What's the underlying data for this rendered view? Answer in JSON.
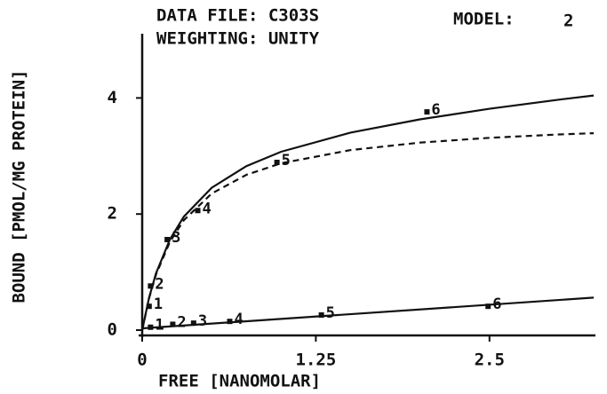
{
  "chart_data": {
    "type": "scatter",
    "title_lines": [
      "DATA FILE: C303S",
      "WEIGHTING: UNITY"
    ],
    "model_label": "MODEL:",
    "model": "2",
    "x_label": "FREE [NANOMOLAR]",
    "y_label": "BOUND [PMOL/MG PROTEIN]",
    "xlim": [
      0,
      3.25
    ],
    "ylim": [
      0,
      5
    ],
    "xticks": [
      0,
      1.25,
      2.5
    ],
    "yticks": [
      0,
      2,
      4
    ],
    "color": "#111111",
    "series": [
      {
        "style": "points",
        "labels": [
          "1",
          "2",
          "3",
          "4",
          "5",
          "6"
        ],
        "x": [
          0.05,
          0.06,
          0.18,
          0.4,
          0.97,
          2.05
        ],
        "values": [
          0.41,
          0.76,
          1.56,
          2.06,
          2.89,
          3.76
        ]
      },
      {
        "style": "points",
        "labels": [
          "1",
          "2",
          "3",
          "4",
          "5",
          "6"
        ],
        "x": [
          0.06,
          0.22,
          0.37,
          0.63,
          1.29,
          2.49
        ],
        "values": [
          0.05,
          0.1,
          0.12,
          0.15,
          0.26,
          0.41
        ]
      },
      {
        "style": "solid",
        "x": [
          0,
          0.05,
          0.1,
          0.2,
          0.3,
          0.5,
          0.75,
          1,
          1.5,
          2,
          2.5,
          3,
          3.25
        ],
        "values": [
          0,
          0.562,
          0.981,
          1.565,
          1.955,
          2.453,
          2.826,
          3.074,
          3.403,
          3.631,
          3.814,
          3.971,
          4.043
        ]
      },
      {
        "style": "dashed",
        "x": [
          0,
          0.05,
          0.1,
          0.2,
          0.3,
          0.5,
          0.75,
          1,
          1.5,
          2,
          2.5,
          3,
          3.25
        ],
        "values": [
          0,
          0.552,
          0.961,
          1.525,
          1.895,
          2.353,
          2.676,
          2.874,
          3.103,
          3.231,
          3.314,
          3.371,
          3.393
        ]
      },
      {
        "style": "solid",
        "x": [
          0,
          3.25
        ],
        "values": [
          0.03,
          0.56
        ]
      }
    ]
  }
}
